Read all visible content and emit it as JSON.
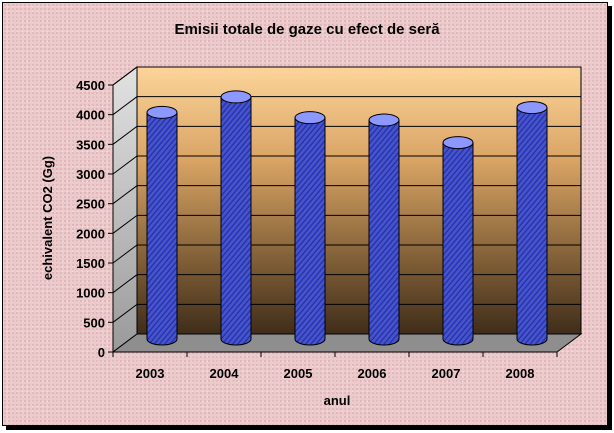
{
  "chart_data": {
    "type": "bar",
    "title": "Emisii totale de gaze cu efect de seră",
    "xlabel": "anul",
    "ylabel": "echivalent CO2 (Gg)",
    "categories": [
      "2003",
      "2004",
      "2005",
      "2006",
      "2007",
      "2008"
    ],
    "values": [
      3820,
      4080,
      3730,
      3690,
      3310,
      3900
    ],
    "ylim": [
      0,
      4500
    ],
    "yticks": [
      "0",
      "500",
      "1000",
      "1500",
      "2000",
      "2500",
      "3000",
      "3500",
      "4000",
      "4500"
    ],
    "grid": true,
    "legend": "none",
    "bar_style": "3d-cylinder",
    "colors": {
      "bar": "#3e4fd6",
      "bar_dark": "#1c2490",
      "bar_light": "#8c98ff",
      "wall_top": "#fcd49a",
      "wall_bottom": "#3f2d1a",
      "floor": "#8e8e8e",
      "background": "#ecc9cb"
    }
  }
}
